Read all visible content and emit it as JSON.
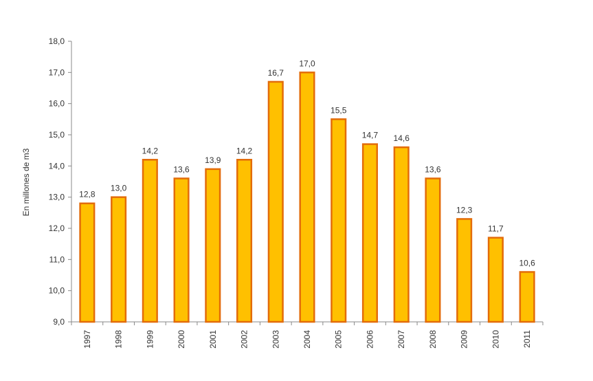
{
  "chart_data": {
    "type": "bar",
    "title": "",
    "xlabel": "",
    "ylabel": "En millones de m3",
    "categories": [
      "1997",
      "1998",
      "1999",
      "2000",
      "2001",
      "2002",
      "2003",
      "2004",
      "2005",
      "2006",
      "2007",
      "2008",
      "2009",
      "2010",
      "2011"
    ],
    "values": [
      12.8,
      13.0,
      14.2,
      13.6,
      13.9,
      14.2,
      16.7,
      17.0,
      15.5,
      14.7,
      14.6,
      13.6,
      12.3,
      11.7,
      10.6
    ],
    "value_labels": [
      "12,8",
      "13,0",
      "14,2",
      "13,6",
      "13,9",
      "14,2",
      "16,7",
      "17,0",
      "15,5",
      "14,7",
      "14,6",
      "13,6",
      "12,3",
      "11,7",
      "10,6"
    ],
    "ylim": [
      9,
      18
    ],
    "yticks": [
      9,
      10,
      11,
      12,
      13,
      14,
      15,
      16,
      17,
      18
    ],
    "ytick_labels": [
      "9,0",
      "10,0",
      "11,0",
      "12,0",
      "13,0",
      "14,0",
      "15,0",
      "16,0",
      "17,0",
      "18,0"
    ],
    "grid": false,
    "legend": "none",
    "colors": {
      "bar_fill": "#FFC000",
      "bar_stroke": "#E36C0A",
      "axis": "#888888"
    }
  }
}
